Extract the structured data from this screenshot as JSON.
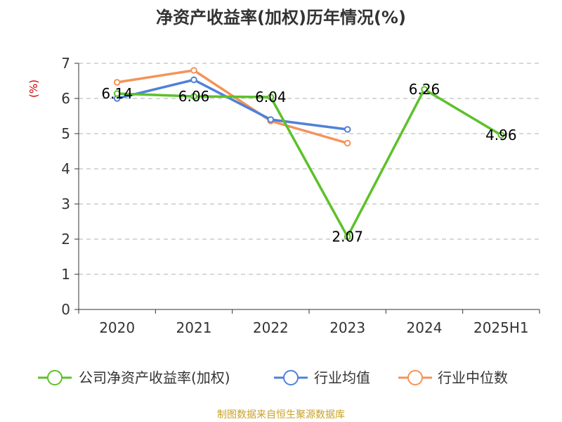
{
  "chart_data": {
    "type": "line",
    "title": "净资产收益率(加权)历年情况(%)",
    "ylabel": "(%)",
    "xlabel": "",
    "categories": [
      "2020",
      "2021",
      "2022",
      "2023",
      "2024",
      "2025H1"
    ],
    "ylim": [
      0,
      7
    ],
    "yticks": [
      0,
      1,
      2,
      3,
      4,
      5,
      6,
      7
    ],
    "grid": true,
    "legend_position": "bottom",
    "series": [
      {
        "name": "公司净资产收益率(加权)",
        "color": "#5cc12a",
        "values": [
          6.14,
          6.06,
          6.04,
          2.07,
          6.26,
          4.96
        ],
        "labels": [
          "6.14",
          "6.06",
          "6.04",
          "2.07",
          "6.26",
          "4.96"
        ]
      },
      {
        "name": "行业均值",
        "color": "#4f81d9",
        "values": [
          6.0,
          6.53,
          5.4,
          5.12,
          null,
          null
        ]
      },
      {
        "name": "行业中位数",
        "color": "#f4935a",
        "values": [
          6.46,
          6.8,
          5.36,
          4.73,
          null,
          null
        ]
      }
    ]
  },
  "source_text": "制图数据来自恒生聚源数据库"
}
